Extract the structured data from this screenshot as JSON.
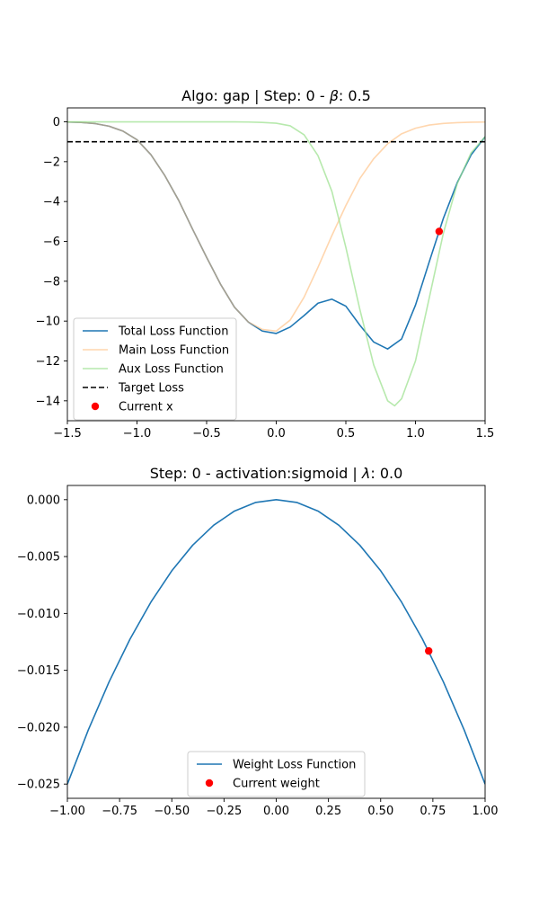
{
  "chart_data": [
    {
      "type": "line",
      "title_prefix": "Algo: gap | Step: 0 - ",
      "title_symbol": "β",
      "title_suffix": ": 0.5",
      "xlim": [
        -1.5,
        1.5
      ],
      "ylim": [
        -15,
        0.7
      ],
      "x_ticks": [
        -1.5,
        -1.0,
        -0.5,
        0.0,
        0.5,
        1.0,
        1.5
      ],
      "x_tick_labels": [
        "−1.5",
        "−1.0",
        "−0.5",
        "0.0",
        "0.5",
        "1.0",
        "1.5"
      ],
      "y_ticks": [
        0,
        -2,
        -4,
        -6,
        -8,
        -10,
        -12,
        -14
      ],
      "y_tick_labels": [
        "0",
        "−2",
        "−4",
        "−6",
        "−8",
        "−10",
        "−12",
        "−14"
      ],
      "grid": false,
      "legend_position": "lower-left",
      "series": [
        {
          "name": "Total Loss Function",
          "color": "#1f77b4",
          "x": [
            -1.5,
            -1.4,
            -1.3,
            -1.2,
            -1.1,
            -1.0,
            -0.9,
            -0.8,
            -0.7,
            -0.6,
            -0.5,
            -0.4,
            -0.3,
            -0.2,
            -0.1,
            0.0,
            0.1,
            0.2,
            0.3,
            0.4,
            0.5,
            0.6,
            0.7,
            0.8,
            0.9,
            1.0,
            1.1,
            1.2,
            1.3,
            1.4,
            1.5
          ],
          "y": [
            -0.01,
            -0.03,
            -0.09,
            -0.22,
            -0.47,
            -0.9,
            -1.65,
            -2.7,
            -3.95,
            -5.4,
            -6.8,
            -8.15,
            -9.3,
            -10.05,
            -10.5,
            -10.62,
            -10.3,
            -9.72,
            -9.1,
            -8.9,
            -9.25,
            -10.2,
            -11.05,
            -11.4,
            -10.9,
            -9.2,
            -7.0,
            -4.85,
            -3.05,
            -1.65,
            -0.75
          ]
        },
        {
          "name": "Main Loss Function",
          "color": "#ffbb78",
          "opacity": 0.6,
          "x": [
            -1.5,
            -1.4,
            -1.3,
            -1.2,
            -1.1,
            -1.0,
            -0.9,
            -0.8,
            -0.7,
            -0.6,
            -0.5,
            -0.4,
            -0.3,
            -0.2,
            -0.1,
            0.0,
            0.1,
            0.2,
            0.3,
            0.4,
            0.5,
            0.6,
            0.7,
            0.8,
            0.9,
            1.0,
            1.1,
            1.2,
            1.3,
            1.4,
            1.5
          ],
          "y": [
            -0.01,
            -0.03,
            -0.09,
            -0.22,
            -0.47,
            -0.9,
            -1.65,
            -2.7,
            -3.95,
            -5.4,
            -6.8,
            -8.15,
            -9.3,
            -10.05,
            -10.42,
            -10.5,
            -9.95,
            -8.8,
            -7.3,
            -5.7,
            -4.2,
            -2.85,
            -1.85,
            -1.1,
            -0.6,
            -0.32,
            -0.16,
            -0.08,
            -0.04,
            -0.02,
            -0.01
          ]
        },
        {
          "name": "Aux Loss Function",
          "color": "#98df8a",
          "opacity": 0.7,
          "x": [
            -1.5,
            -1.0,
            -0.5,
            -0.3,
            -0.2,
            -0.1,
            0.0,
            0.1,
            0.2,
            0.3,
            0.4,
            0.5,
            0.6,
            0.7,
            0.8,
            0.85,
            0.9,
            1.0,
            1.1,
            1.2,
            1.3,
            1.4,
            1.5
          ],
          "y": [
            0,
            0,
            0,
            0,
            -0.01,
            -0.03,
            -0.07,
            -0.2,
            -0.65,
            -1.7,
            -3.5,
            -6.3,
            -9.4,
            -12.2,
            -14.0,
            -14.25,
            -13.9,
            -12.0,
            -8.8,
            -5.6,
            -3.1,
            -1.55,
            -0.75
          ]
        },
        {
          "name": "Target Loss",
          "color": "#000000",
          "dashed": true,
          "x": [
            -1.5,
            1.5
          ],
          "y": [
            -1.0,
            -1.0
          ]
        }
      ],
      "markers": [
        {
          "name": "Current x",
          "color": "#ff0000",
          "x": 1.17,
          "y": -5.5
        }
      ]
    },
    {
      "type": "line",
      "title_prefix": "Step: 0 - activation:sigmoid | ",
      "title_symbol": "λ",
      "title_suffix": ": 0.0",
      "xlim": [
        -1.0,
        1.0
      ],
      "ylim": [
        -0.02625,
        0.00125
      ],
      "x_ticks": [
        -1.0,
        -0.75,
        -0.5,
        -0.25,
        0.0,
        0.25,
        0.5,
        0.75,
        1.0
      ],
      "x_tick_labels": [
        "−1.00",
        "−0.75",
        "−0.50",
        "−0.25",
        "0.00",
        "0.25",
        "0.50",
        "0.75",
        "1.00"
      ],
      "y_ticks": [
        0.0,
        -0.005,
        -0.01,
        -0.015,
        -0.02,
        -0.025
      ],
      "y_tick_labels": [
        "0.000",
        "−0.005",
        "−0.010",
        "−0.015",
        "−0.020",
        "−0.025"
      ],
      "grid": false,
      "legend_position": "lower-center",
      "series": [
        {
          "name": "Weight Loss Function",
          "color": "#1f77b4",
          "x": [
            -1.0,
            -0.9,
            -0.8,
            -0.7,
            -0.6,
            -0.5,
            -0.4,
            -0.3,
            -0.2,
            -0.1,
            0.0,
            0.1,
            0.2,
            0.3,
            0.4,
            0.5,
            0.6,
            0.7,
            0.8,
            0.9,
            1.0
          ],
          "y": [
            -0.025,
            -0.02025,
            -0.016,
            -0.01225,
            -0.009,
            -0.00625,
            -0.004,
            -0.00225,
            -0.001,
            -0.00025,
            0.0,
            -0.00025,
            -0.001,
            -0.00225,
            -0.004,
            -0.00625,
            -0.009,
            -0.01225,
            -0.016,
            -0.02025,
            -0.025
          ]
        }
      ],
      "markers": [
        {
          "name": "Current weight",
          "color": "#ff0000",
          "x": 0.73,
          "y": -0.0133
        }
      ]
    }
  ]
}
